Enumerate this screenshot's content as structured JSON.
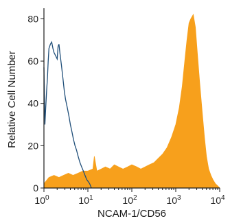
{
  "chart_data": {
    "type": "area",
    "xlabel": "NCAM-1/CD56",
    "ylabel": "Relative Cell Number",
    "x_scale": "log",
    "xlim": [
      1,
      10000
    ],
    "ylim": [
      0,
      85
    ],
    "grid": false,
    "y_ticks": [
      "0",
      "20",
      "40",
      "60",
      "80"
    ],
    "y_tick_values": [
      0,
      20,
      40,
      60,
      80
    ],
    "x_ticks": [
      {
        "base": "10",
        "exp": "0",
        "value": 1
      },
      {
        "base": "10",
        "exp": "1",
        "value": 10
      },
      {
        "base": "10",
        "exp": "2",
        "value": 100
      },
      {
        "base": "10",
        "exp": "3",
        "value": 1000
      },
      {
        "base": "10",
        "exp": "4",
        "value": 10000
      }
    ],
    "series": [
      {
        "style": "line",
        "color": "#1f4e79",
        "x": [
          1.0,
          1.05,
          1.1,
          1.15,
          1.2,
          1.25,
          1.3,
          1.4,
          1.5,
          1.6,
          1.7,
          1.8,
          1.9,
          2.0,
          2.1,
          2.2,
          2.3,
          2.5,
          2.7,
          2.9,
          3.1,
          3.4,
          3.7,
          4.0,
          4.3,
          4.7,
          5.1,
          5.5,
          6.0,
          6.6,
          7.2,
          7.9,
          8.6,
          9.4,
          10.2,
          11.0,
          12.0
        ],
        "y": [
          57,
          30,
          38,
          46,
          52,
          60,
          66,
          68,
          69,
          66,
          64,
          63,
          62,
          61,
          67,
          68,
          64,
          58,
          52,
          46,
          42,
          38,
          34,
          30,
          27,
          23,
          20,
          18,
          15,
          12,
          10,
          8,
          6,
          4,
          3,
          2,
          0
        ]
      },
      {
        "style": "filled",
        "color": "#f7a01c",
        "x": [
          1.0,
          1.3,
          1.7,
          2.2,
          2.8,
          3.6,
          4.6,
          6.0,
          7.7,
          10.0,
          13.0,
          14.0,
          16.0,
          20.0,
          25.0,
          32.0,
          40.0,
          50.0,
          63.0,
          80.0,
          100.0,
          130.0,
          160.0,
          200.0,
          250.0,
          320.0,
          400.0,
          500.0,
          630.0,
          800.0,
          1000.0,
          1200.0,
          1400.0,
          1600.0,
          1800.0,
          2000.0,
          2200.0,
          2500.0,
          2800.0,
          3100.0,
          3500.0,
          4000.0,
          4500.0,
          5000.0,
          5600.0,
          6300.0,
          7000.0,
          8000.0,
          9000.0,
          10000.0
        ],
        "y": [
          2,
          5,
          6,
          5,
          6,
          7,
          6,
          7,
          8,
          8,
          9,
          15,
          8,
          9,
          10,
          9,
          11,
          10,
          9,
          10,
          11,
          10,
          9,
          10,
          11,
          12,
          14,
          16,
          19,
          24,
          30,
          38,
          48,
          60,
          70,
          78,
          80,
          82,
          76,
          64,
          50,
          36,
          24,
          15,
          9,
          6,
          4,
          2,
          1,
          0
        ]
      }
    ]
  }
}
